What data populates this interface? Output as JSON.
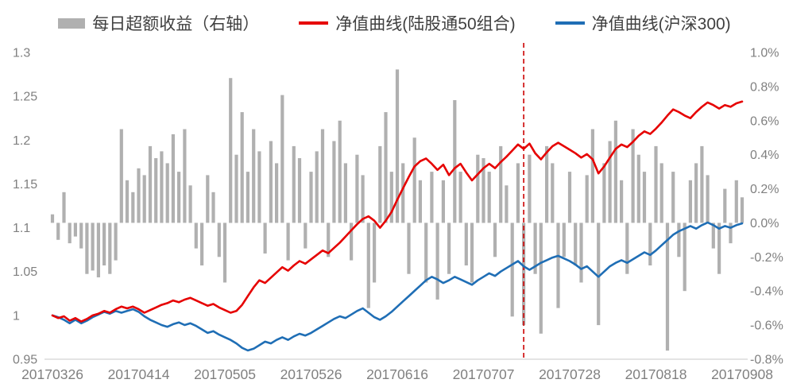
{
  "legend": {
    "bars": "每日超额收益（右轴）",
    "red": "净值曲线(陆股通50组合)",
    "blue": "净值曲线(沪深300)"
  },
  "colors": {
    "bar": "#b0b0b0",
    "red": "#e60000",
    "blue": "#1f6eb5",
    "dashed": "#cc0000",
    "axis_text": "#808080",
    "axis_line": "#c9c9c9",
    "legend_text": "#3f3f3f"
  },
  "chart_data": {
    "type": "mixed",
    "title": "",
    "grid": false,
    "legend_position": "top",
    "left_axis": {
      "min": 0.95,
      "max": 1.3,
      "labels": [
        "1.3",
        "1.25",
        "1.2",
        "1.15",
        "1.1",
        "1.05",
        "1",
        "0.95"
      ],
      "values": [
        1.3,
        1.25,
        1.2,
        1.15,
        1.1,
        1.05,
        1.0,
        0.95
      ]
    },
    "right_axis": {
      "min": -0.8,
      "max": 1.0,
      "unit": "%",
      "labels": [
        "1.0%",
        "0.8%",
        "0.6%",
        "0.4%",
        "0.2%",
        "0.0%",
        "-0.2%",
        "-0.4%",
        "-0.6%",
        "-0.8%"
      ],
      "values": [
        1.0,
        0.8,
        0.6,
        0.4,
        0.2,
        0.0,
        -0.2,
        -0.4,
        -0.6,
        -0.8
      ]
    },
    "x_axis": {
      "labels": [
        "20170326",
        "20170414",
        "20170505",
        "20170526",
        "20170616",
        "20170707",
        "20170728",
        "20170818",
        "20170908"
      ],
      "indices": [
        0,
        15,
        30,
        45,
        60,
        75,
        90,
        105,
        120
      ]
    },
    "marker_index": 82,
    "series": [
      {
        "name": "每日超额收益（右轴）",
        "type": "bar",
        "axis": "right",
        "unit": "%",
        "values": [
          0.05,
          -0.1,
          0.18,
          -0.12,
          -0.08,
          -0.15,
          -0.3,
          -0.28,
          -0.32,
          -0.25,
          -0.3,
          -0.22,
          0.55,
          0.25,
          0.18,
          0.32,
          0.28,
          0.45,
          0.38,
          0.42,
          0.35,
          0.52,
          0.3,
          0.55,
          0.22,
          -0.15,
          -0.25,
          0.28,
          0.18,
          -0.2,
          -0.35,
          0.85,
          0.4,
          0.65,
          0.3,
          0.55,
          0.42,
          -0.18,
          0.48,
          0.35,
          0.75,
          -0.22,
          0.45,
          0.38,
          -0.15,
          0.3,
          0.42,
          0.55,
          -0.2,
          0.48,
          0.6,
          0.35,
          -0.22,
          0.4,
          0.28,
          -0.5,
          -0.35,
          0.45,
          0.65,
          0.3,
          0.9,
          0.35,
          -0.3,
          0.5,
          0.25,
          -0.35,
          0.3,
          -0.45,
          0.25,
          -0.3,
          0.72,
          0.3,
          -0.25,
          -0.35,
          0.4,
          0.38,
          0.3,
          -0.2,
          0.45,
          0.22,
          -0.55,
          0.35,
          -0.6,
          0.4,
          -0.3,
          -0.65,
          0.45,
          0.35,
          -0.5,
          -0.2,
          0.3,
          -0.25,
          -0.35,
          0.28,
          0.55,
          -0.6,
          0.35,
          0.48,
          0.6,
          0.25,
          -0.3,
          0.55,
          0.4,
          0.3,
          -0.25,
          0.45,
          0.35,
          -0.75,
          0.3,
          -0.2,
          -0.4,
          0.25,
          0.35,
          0.45,
          0.28,
          -0.15,
          -0.3,
          0.2,
          -0.12,
          0.25,
          0.15
        ]
      },
      {
        "name": "净值曲线(陆股通50组合)",
        "type": "line",
        "axis": "left",
        "values": [
          1.0,
          0.997,
          0.999,
          0.994,
          0.997,
          0.993,
          0.996,
          1.0,
          1.002,
          1.005,
          1.003,
          1.007,
          1.01,
          1.008,
          1.01,
          1.007,
          1.003,
          1.006,
          1.009,
          1.012,
          1.014,
          1.017,
          1.015,
          1.018,
          1.02,
          1.017,
          1.014,
          1.011,
          1.013,
          1.009,
          1.006,
          1.003,
          1.005,
          1.012,
          1.022,
          1.032,
          1.04,
          1.037,
          1.043,
          1.049,
          1.055,
          1.051,
          1.057,
          1.062,
          1.059,
          1.064,
          1.069,
          1.074,
          1.071,
          1.077,
          1.083,
          1.09,
          1.097,
          1.104,
          1.11,
          1.113,
          1.108,
          1.1,
          1.108,
          1.118,
          1.132,
          1.145,
          1.158,
          1.17,
          1.176,
          1.179,
          1.173,
          1.166,
          1.172,
          1.16,
          1.168,
          1.173,
          1.163,
          1.154,
          1.161,
          1.168,
          1.173,
          1.168,
          1.175,
          1.181,
          1.188,
          1.195,
          1.19,
          1.196,
          1.185,
          1.178,
          1.186,
          1.193,
          1.197,
          1.193,
          1.189,
          1.185,
          1.18,
          1.184,
          1.178,
          1.162,
          1.17,
          1.18,
          1.19,
          1.195,
          1.192,
          1.198,
          1.205,
          1.21,
          1.207,
          1.213,
          1.22,
          1.228,
          1.235,
          1.232,
          1.228,
          1.225,
          1.232,
          1.238,
          1.243,
          1.24,
          1.236,
          1.24,
          1.238,
          1.242,
          1.244
        ]
      },
      {
        "name": "净值曲线(沪深300)",
        "type": "line",
        "axis": "left",
        "values": [
          1.0,
          0.998,
          0.995,
          0.991,
          0.995,
          0.991,
          0.994,
          0.998,
          1.001,
          1.004,
          1.002,
          1.005,
          1.003,
          1.005,
          1.007,
          1.004,
          0.999,
          0.995,
          0.992,
          0.989,
          0.987,
          0.99,
          0.992,
          0.989,
          0.991,
          0.988,
          0.984,
          0.98,
          0.982,
          0.978,
          0.975,
          0.972,
          0.968,
          0.963,
          0.96,
          0.962,
          0.966,
          0.97,
          0.968,
          0.972,
          0.975,
          0.972,
          0.976,
          0.979,
          0.977,
          0.98,
          0.984,
          0.988,
          0.992,
          0.996,
          0.999,
          0.997,
          1.001,
          1.005,
          1.008,
          1.003,
          0.998,
          0.995,
          0.999,
          1.004,
          1.01,
          1.016,
          1.022,
          1.028,
          1.034,
          1.04,
          1.044,
          1.041,
          1.037,
          1.04,
          1.044,
          1.041,
          1.038,
          1.035,
          1.04,
          1.044,
          1.048,
          1.045,
          1.05,
          1.054,
          1.058,
          1.062,
          1.056,
          1.052,
          1.056,
          1.06,
          1.063,
          1.066,
          1.068,
          1.065,
          1.062,
          1.058,
          1.053,
          1.056,
          1.05,
          1.044,
          1.05,
          1.056,
          1.06,
          1.063,
          1.06,
          1.064,
          1.068,
          1.072,
          1.069,
          1.074,
          1.08,
          1.086,
          1.092,
          1.096,
          1.099,
          1.102,
          1.099,
          1.103,
          1.106,
          1.103,
          1.099,
          1.102,
          1.1,
          1.103,
          1.105
        ]
      }
    ]
  }
}
